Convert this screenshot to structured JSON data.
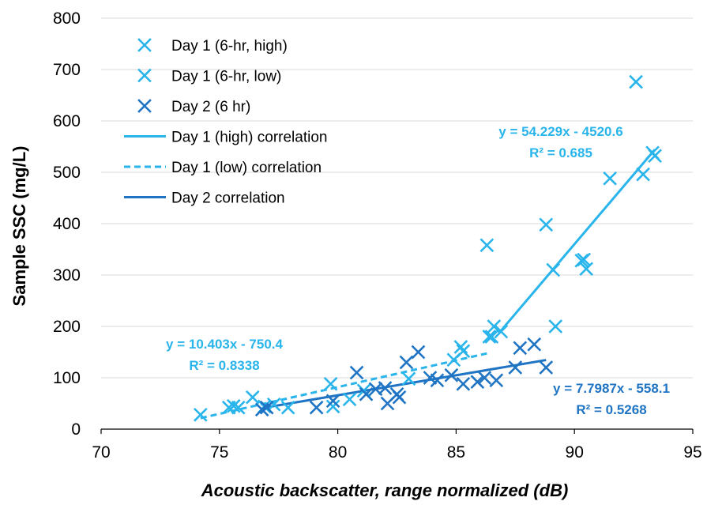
{
  "chart_data": {
    "type": "scatter",
    "xlabel": "Acoustic backscatter, range normalized (dB)",
    "ylabel": "Sample SSC (mg/L)",
    "xlim": [
      70,
      95
    ],
    "ylim": [
      0,
      800
    ],
    "xticks": [
      70,
      75,
      80,
      85,
      90,
      95
    ],
    "yticks": [
      0,
      100,
      200,
      300,
      400,
      500,
      600,
      700,
      800
    ],
    "xtick_labels": [
      "70",
      "75",
      "80",
      "85",
      "90",
      "95"
    ],
    "ytick_labels": [
      "0",
      "100",
      "200",
      "300",
      "400",
      "500",
      "600",
      "700",
      "800"
    ],
    "grid": "horizontal",
    "legend_position": "top-left",
    "series": [
      {
        "name": "Day 1 (6-hr, high)",
        "kind": "scatter",
        "marker": "x",
        "color": "#29B5EC",
        "points": [
          [
            86.3,
            358
          ],
          [
            86.5,
            180
          ],
          [
            86.6,
            200
          ],
          [
            86.9,
            190
          ],
          [
            88.8,
            398
          ],
          [
            89.1,
            310
          ],
          [
            89.2,
            200
          ],
          [
            90.3,
            328
          ],
          [
            90.4,
            330
          ],
          [
            90.5,
            312
          ],
          [
            91.5,
            488
          ],
          [
            92.6,
            676
          ],
          [
            92.9,
            496
          ],
          [
            93.3,
            538
          ],
          [
            93.4,
            532
          ]
        ]
      },
      {
        "name": "Day 1 (6-hr, low)",
        "kind": "scatter",
        "marker": "x",
        "color": "#29B5EC",
        "points": [
          [
            74.2,
            28
          ],
          [
            75.4,
            42
          ],
          [
            75.6,
            45
          ],
          [
            75.8,
            42
          ],
          [
            76.4,
            62
          ],
          [
            76.9,
            44
          ],
          [
            77.3,
            48
          ],
          [
            77.9,
            42
          ],
          [
            79.7,
            88
          ],
          [
            79.8,
            44
          ],
          [
            80.5,
            58
          ],
          [
            81.1,
            75
          ],
          [
            83.0,
            98
          ],
          [
            84.9,
            135
          ],
          [
            85.2,
            160
          ],
          [
            85.3,
            152
          ],
          [
            86.4,
            180
          ]
        ]
      },
      {
        "name": "Day 2 (6 hr)",
        "kind": "scatter",
        "marker": "x",
        "color": "#1F74C4",
        "points": [
          [
            76.8,
            38
          ],
          [
            77.0,
            42
          ],
          [
            79.1,
            42
          ],
          [
            79.8,
            55
          ],
          [
            80.8,
            110
          ],
          [
            81.2,
            68
          ],
          [
            81.6,
            78
          ],
          [
            82.0,
            80
          ],
          [
            82.1,
            50
          ],
          [
            82.5,
            68
          ],
          [
            82.6,
            62
          ],
          [
            82.9,
            130
          ],
          [
            83.4,
            150
          ],
          [
            83.9,
            100
          ],
          [
            84.2,
            95
          ],
          [
            84.8,
            105
          ],
          [
            85.3,
            88
          ],
          [
            85.9,
            92
          ],
          [
            86.2,
            100
          ],
          [
            86.7,
            95
          ],
          [
            87.5,
            120
          ],
          [
            87.7,
            158
          ],
          [
            88.3,
            165
          ],
          [
            88.8,
            120
          ]
        ]
      },
      {
        "name": "Day 1 (high) correlation",
        "kind": "line",
        "dash": "solid",
        "color": "#29B5EC",
        "points": [
          [
            86.8,
            186.5
          ],
          [
            93.4,
            544.4
          ]
        ]
      },
      {
        "name": "Day 1 (low) correlation",
        "kind": "line",
        "dash": "dashed",
        "color": "#29B5EC",
        "points": [
          [
            74.2,
            21.5
          ],
          [
            86.3,
            147.4
          ]
        ]
      },
      {
        "name": "Day 2 correlation",
        "kind": "line",
        "dash": "solid",
        "color": "#1F74C4",
        "points": [
          [
            76.8,
            40.9
          ],
          [
            88.8,
            134.5
          ]
        ]
      }
    ],
    "annotations": [
      {
        "lines": [
          "y = 54.229x - 4520.6",
          "R² = 0.685"
        ],
        "color": "#29B5EC"
      },
      {
        "lines": [
          "y = 10.403x - 750.4",
          "R² = 0.8338"
        ],
        "color": "#29B5EC"
      },
      {
        "lines": [
          "y = 7.7987x - 558.1",
          "R² = 0.5268"
        ],
        "color": "#1F74C4"
      }
    ]
  }
}
